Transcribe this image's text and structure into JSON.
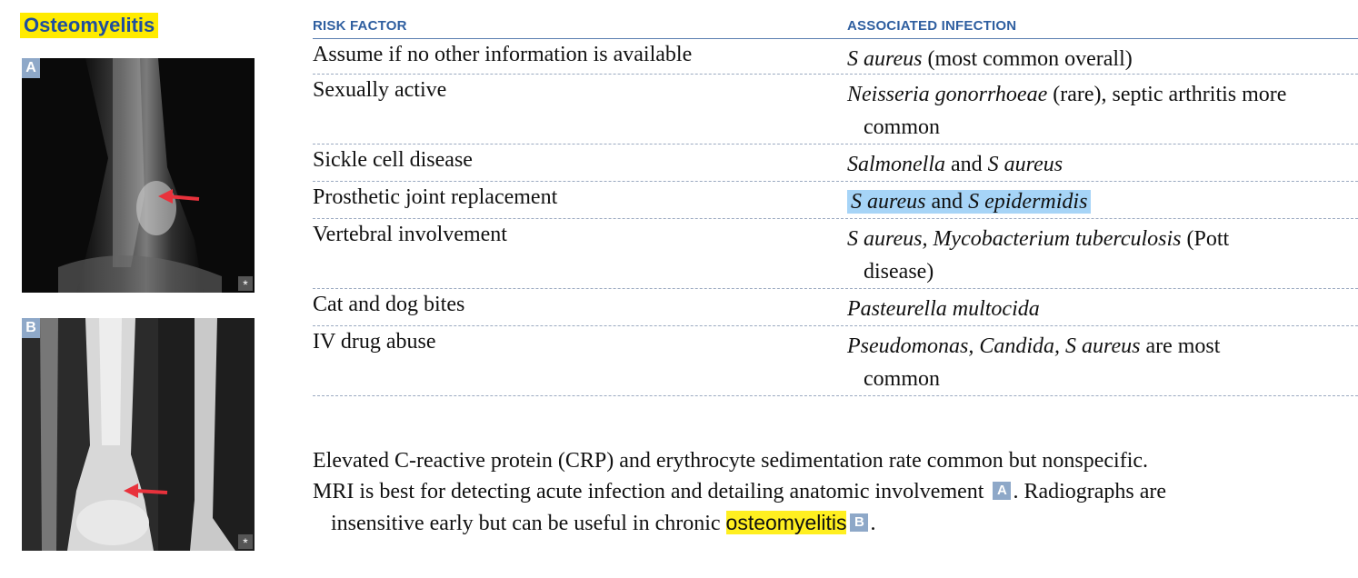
{
  "topic": "Osteomyelitis",
  "images": {
    "a": {
      "label": "A",
      "star": "*"
    },
    "b": {
      "label": "B",
      "star": "*"
    }
  },
  "table": {
    "headers": {
      "risk_factor": "RISK FACTOR",
      "associated_infection": "ASSOCIATED INFECTION"
    },
    "rows": [
      {
        "risk": "Assume if no other information is available",
        "organism_it": "S aureus",
        "rest": " (most common overall)"
      },
      {
        "risk": "Sexually active",
        "organism_it": "Neisseria gonorrhoeae",
        "rest": " (rare), septic arthritis more",
        "cont": "common"
      },
      {
        "risk": "Sickle cell disease",
        "organism_it": "Salmonella",
        "mid": " and ",
        "organism_it2": "S aureus"
      },
      {
        "risk": "Prosthetic joint replacement",
        "organism_it": "S aureus",
        "mid": " and ",
        "organism_it2": "S epidermidis"
      },
      {
        "risk": "Vertebral involvement",
        "organism_it": "S aureus, Mycobacterium tuberculosis",
        "rest": " (Pott",
        "cont": "disease)"
      },
      {
        "risk": "Cat and dog bites",
        "organism_it": "Pasteurella multocida"
      },
      {
        "risk": "IV drug abuse",
        "organism_it": "Pseudomonas, Candida, S aureus",
        "rest": " are most",
        "cont": "common"
      }
    ]
  },
  "notes": {
    "line1": "Elevated C-reactive protein (CRP) and erythrocyte sedimentation rate common but nonspecific.",
    "line2a": "MRI is best for detecting acute infection and detailing anatomic involvement ",
    "line2_tag": "A",
    "line2b": ". Radiographs are",
    "line3a": "insensitive early but can be useful in chronic ",
    "line3_hl": "osteomyelitis",
    "line3_tag": "B",
    "line3b": "."
  },
  "colors": {
    "highlight_yellow": "#ffef20",
    "highlight_blue": "#a6d4f7",
    "header_blue": "#2f5fa0",
    "arrow_red": "#e8323c"
  }
}
